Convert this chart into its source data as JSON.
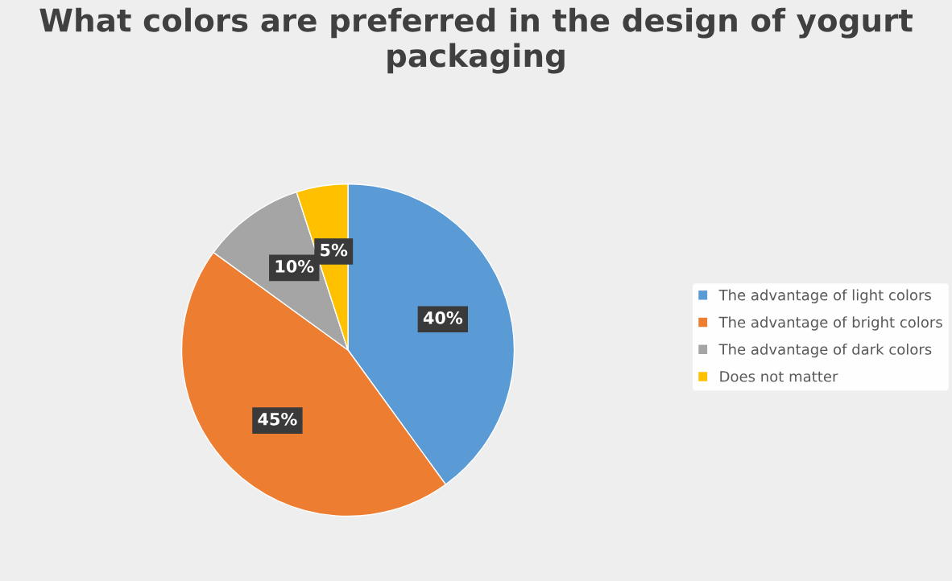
{
  "chart_data": {
    "type": "pie",
    "title": "What colors are preferred in the design of yogurt packaging",
    "categories": [
      "The advantage of light colors",
      "The advantage of bright colors",
      "The advantage of dark colors",
      "Does not matter"
    ],
    "values": [
      40,
      45,
      10,
      5
    ],
    "colors": [
      "#5b9bd5",
      "#ed7d31",
      "#a5a5a5",
      "#ffc000"
    ],
    "value_labels": [
      "40%",
      "45%",
      "10%",
      "5%"
    ],
    "legend": "right"
  }
}
